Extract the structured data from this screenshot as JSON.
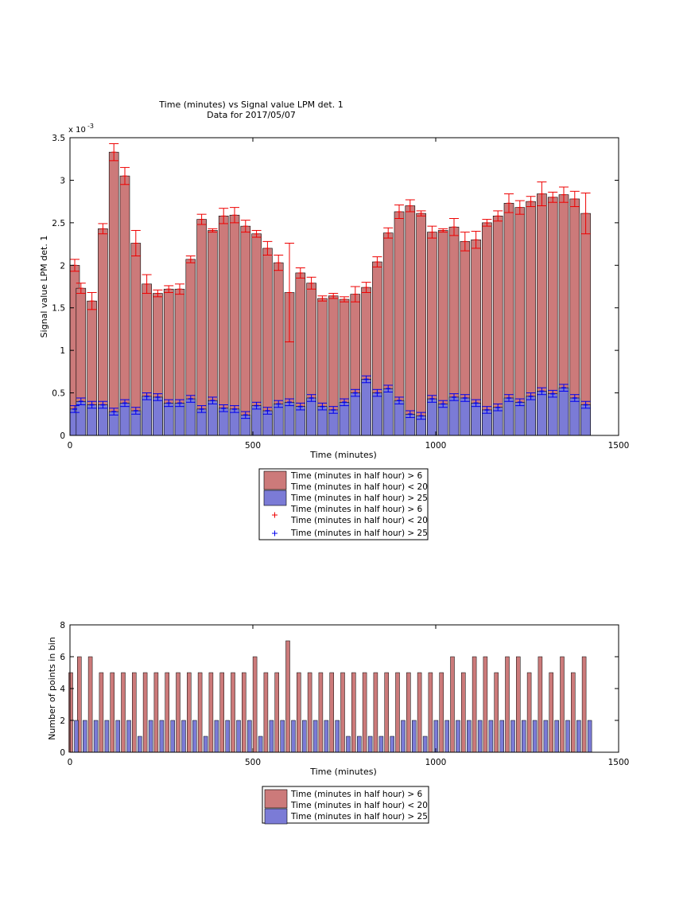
{
  "chart_data": [
    {
      "type": "bar",
      "title": "Time (minutes) vs Signal value LPM det. 1",
      "subtitle": "Data for 2017/05/07",
      "xlabel": "Time (minutes)",
      "ylabel": "Signal value LPM det. 1",
      "exponent_label": "x 10",
      "exponent_power": "-3",
      "xlim": [
        0,
        1500
      ],
      "ylim": [
        0,
        3.5
      ],
      "xticks": [
        "0",
        "500",
        "1000",
        "1500"
      ],
      "yticks": [
        "0",
        "0.5",
        "1",
        "1.5",
        "2",
        "2.5",
        "3",
        "3.5"
      ],
      "grid": false,
      "legend_position": "below",
      "x": [
        0,
        30,
        60,
        90,
        120,
        150,
        180,
        210,
        240,
        270,
        300,
        330,
        360,
        390,
        420,
        450,
        480,
        510,
        540,
        570,
        600,
        630,
        660,
        690,
        720,
        750,
        780,
        810,
        840,
        870,
        900,
        930,
        960,
        990,
        1020,
        1050,
        1080,
        1110,
        1140,
        1170,
        1200,
        1230,
        1260,
        1290,
        1320,
        1350,
        1380,
        1410
      ],
      "series": [
        {
          "name": "Time (minutes in half hour) > 6\nTime (minutes in half hour) < 20",
          "color": "#cc7a7a",
          "errcolor": "#ee0000",
          "values": [
            2.0,
            1.73,
            1.58,
            2.43,
            3.33,
            3.05,
            2.26,
            1.78,
            1.67,
            1.72,
            1.72,
            2.07,
            2.54,
            2.41,
            2.58,
            2.59,
            2.46,
            2.37,
            2.2,
            2.03,
            1.68,
            1.91,
            1.79,
            1.61,
            1.64,
            1.6,
            1.66,
            1.74,
            2.04,
            2.38,
            2.63,
            2.7,
            2.61,
            2.39,
            2.41,
            2.45,
            2.28,
            2.3,
            2.5,
            2.58,
            2.73,
            2.68,
            2.75,
            2.84,
            2.8,
            2.83,
            2.78,
            2.61
          ],
          "errors": [
            0.07,
            0.06,
            0.1,
            0.06,
            0.1,
            0.1,
            0.15,
            0.11,
            0.04,
            0.04,
            0.06,
            0.04,
            0.06,
            0.02,
            0.09,
            0.09,
            0.07,
            0.04,
            0.08,
            0.09,
            0.58,
            0.06,
            0.07,
            0.03,
            0.03,
            0.03,
            0.09,
            0.06,
            0.06,
            0.06,
            0.08,
            0.07,
            0.03,
            0.07,
            0.02,
            0.1,
            0.11,
            0.1,
            0.04,
            0.06,
            0.11,
            0.08,
            0.06,
            0.14,
            0.06,
            0.09,
            0.09,
            0.24
          ]
        },
        {
          "name": "Time (minutes in half hour) > 25",
          "color": "#7b7bd6",
          "errcolor": "#0000ee",
          "values": [
            0.31,
            0.4,
            0.36,
            0.36,
            0.28,
            0.38,
            0.29,
            0.46,
            0.45,
            0.38,
            0.38,
            0.43,
            0.31,
            0.41,
            0.32,
            0.31,
            0.24,
            0.35,
            0.29,
            0.37,
            0.39,
            0.34,
            0.44,
            0.34,
            0.3,
            0.39,
            0.5,
            0.66,
            0.5,
            0.55,
            0.41,
            0.25,
            0.23,
            0.43,
            0.37,
            0.45,
            0.44,
            0.38,
            0.3,
            0.33,
            0.44,
            0.39,
            0.46,
            0.52,
            0.49,
            0.56,
            0.44,
            0.36
          ]
        }
      ]
    },
    {
      "type": "bar",
      "xlabel": "Time (minutes)",
      "ylabel": "Number of points in bin",
      "xlim": [
        0,
        1500
      ],
      "ylim": [
        0,
        8
      ],
      "xticks": [
        "0",
        "500",
        "1000",
        "1500"
      ],
      "yticks": [
        "0",
        "2",
        "4",
        "6",
        "8"
      ],
      "grid": false,
      "legend_position": "below",
      "x": [
        0,
        30,
        60,
        90,
        120,
        150,
        180,
        210,
        240,
        270,
        300,
        330,
        360,
        390,
        420,
        450,
        480,
        510,
        540,
        570,
        600,
        630,
        660,
        690,
        720,
        750,
        780,
        810,
        840,
        870,
        900,
        930,
        960,
        990,
        1020,
        1050,
        1080,
        1110,
        1140,
        1170,
        1200,
        1230,
        1260,
        1290,
        1320,
        1350,
        1380,
        1410
      ],
      "series": [
        {
          "name": "Time (minutes in half hour) > 6\nTime (minutes in half hour) < 20",
          "color": "#cc7a7a",
          "values": [
            5,
            6,
            6,
            5,
            5,
            5,
            5,
            5,
            5,
            5,
            5,
            5,
            5,
            5,
            5,
            5,
            5,
            6,
            5,
            5,
            7,
            5,
            5,
            5,
            5,
            5,
            5,
            5,
            5,
            5,
            5,
            5,
            5,
            5,
            5,
            6,
            5,
            6,
            6,
            5,
            6,
            6,
            5,
            6,
            5,
            6,
            5,
            6
          ]
        },
        {
          "name": "Time (minutes in half hour) > 25",
          "color": "#7b7bd6",
          "values": [
            2,
            2,
            2,
            2,
            2,
            2,
            1,
            2,
            2,
            2,
            2,
            2,
            1,
            2,
            2,
            2,
            2,
            1,
            2,
            2,
            2,
            2,
            2,
            2,
            2,
            1,
            1,
            1,
            1,
            1,
            2,
            2,
            1,
            2,
            2,
            2,
            2,
            2,
            2,
            2,
            2,
            2,
            2,
            2,
            2,
            2,
            2,
            2
          ]
        }
      ]
    }
  ]
}
